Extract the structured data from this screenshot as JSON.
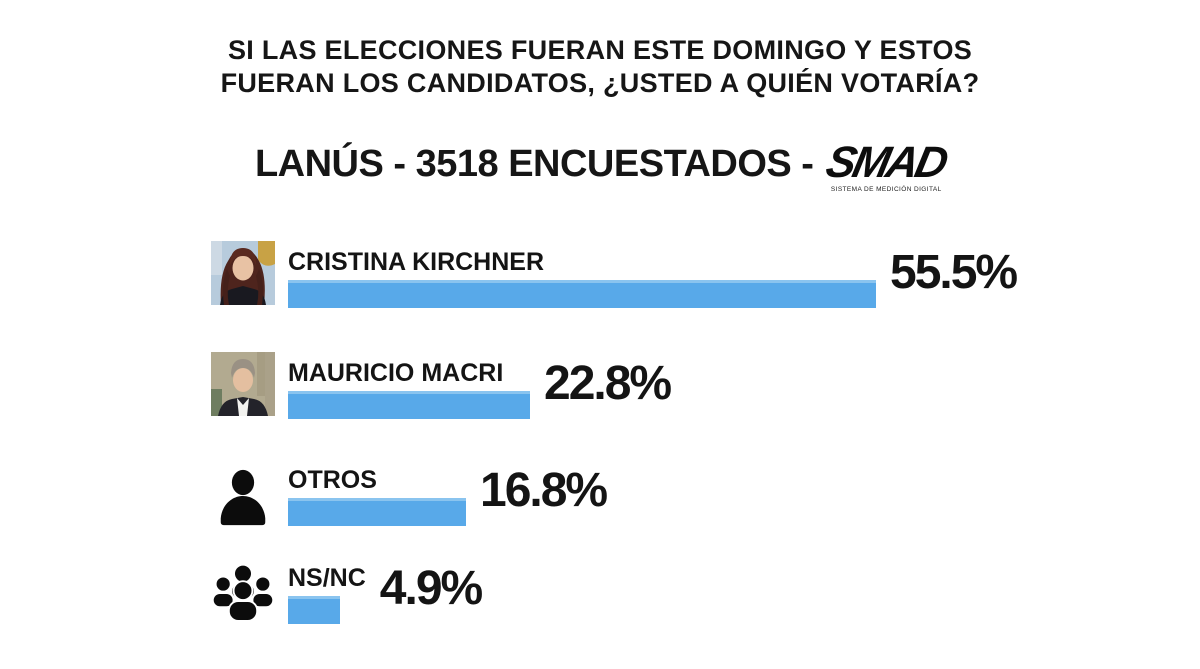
{
  "title": {
    "line1": "SI LAS ELECCIONES FUERAN ESTE DOMINGO Y ESTOS",
    "line2": "FUERAN LOS CANDIDATOS, ¿USTED A QUIÉN VOTARÍA?"
  },
  "subtitle": {
    "text": "LANÚS - 3518 ENCUESTADOS -",
    "logo_name": "SMAD",
    "logo_caption": "SISTEMA DE MEDICIÓN DIGITAL"
  },
  "survey": {
    "location": "LANÚS",
    "respondents": "3518"
  },
  "colors": {
    "bar": "#58A9E9",
    "bar_highlight": "#8AC4EF",
    "text": "#141414"
  },
  "rows": [
    {
      "label": "CRISTINA KIRCHNER",
      "value": 55.5,
      "percent_label": "55.5%",
      "icon": "cristina-photo"
    },
    {
      "label": "MAURICIO MACRI",
      "value": 22.8,
      "percent_label": "22.8%",
      "icon": "macri-photo"
    },
    {
      "label": "OTROS",
      "value": 16.8,
      "percent_label": "16.8%",
      "icon": "person-silhouette-icon"
    },
    {
      "label": "NS/NC",
      "value": 4.9,
      "percent_label": "4.9%",
      "icon": "people-group-icon"
    }
  ],
  "chart_data": {
    "type": "bar",
    "orientation": "horizontal",
    "title": "SI LAS ELECCIONES FUERAN ESTE DOMINGO Y ESTOS FUERAN LOS CANDIDATOS, ¿USTED A QUIÉN VOTARÍA?",
    "subtitle": "LANÚS - 3518 ENCUESTADOS - SMAD",
    "categories": [
      "CRISTINA KIRCHNER",
      "MAURICIO MACRI",
      "OTROS",
      "NS/NC"
    ],
    "values": [
      55.5,
      22.8,
      16.8,
      4.9
    ],
    "unit": "%",
    "value_labels": [
      "55.5%",
      "22.8%",
      "16.8%",
      "4.9%"
    ],
    "bar_color": "#58A9E9",
    "xlim": [
      0,
      60
    ],
    "grid": false,
    "legend": false
  }
}
